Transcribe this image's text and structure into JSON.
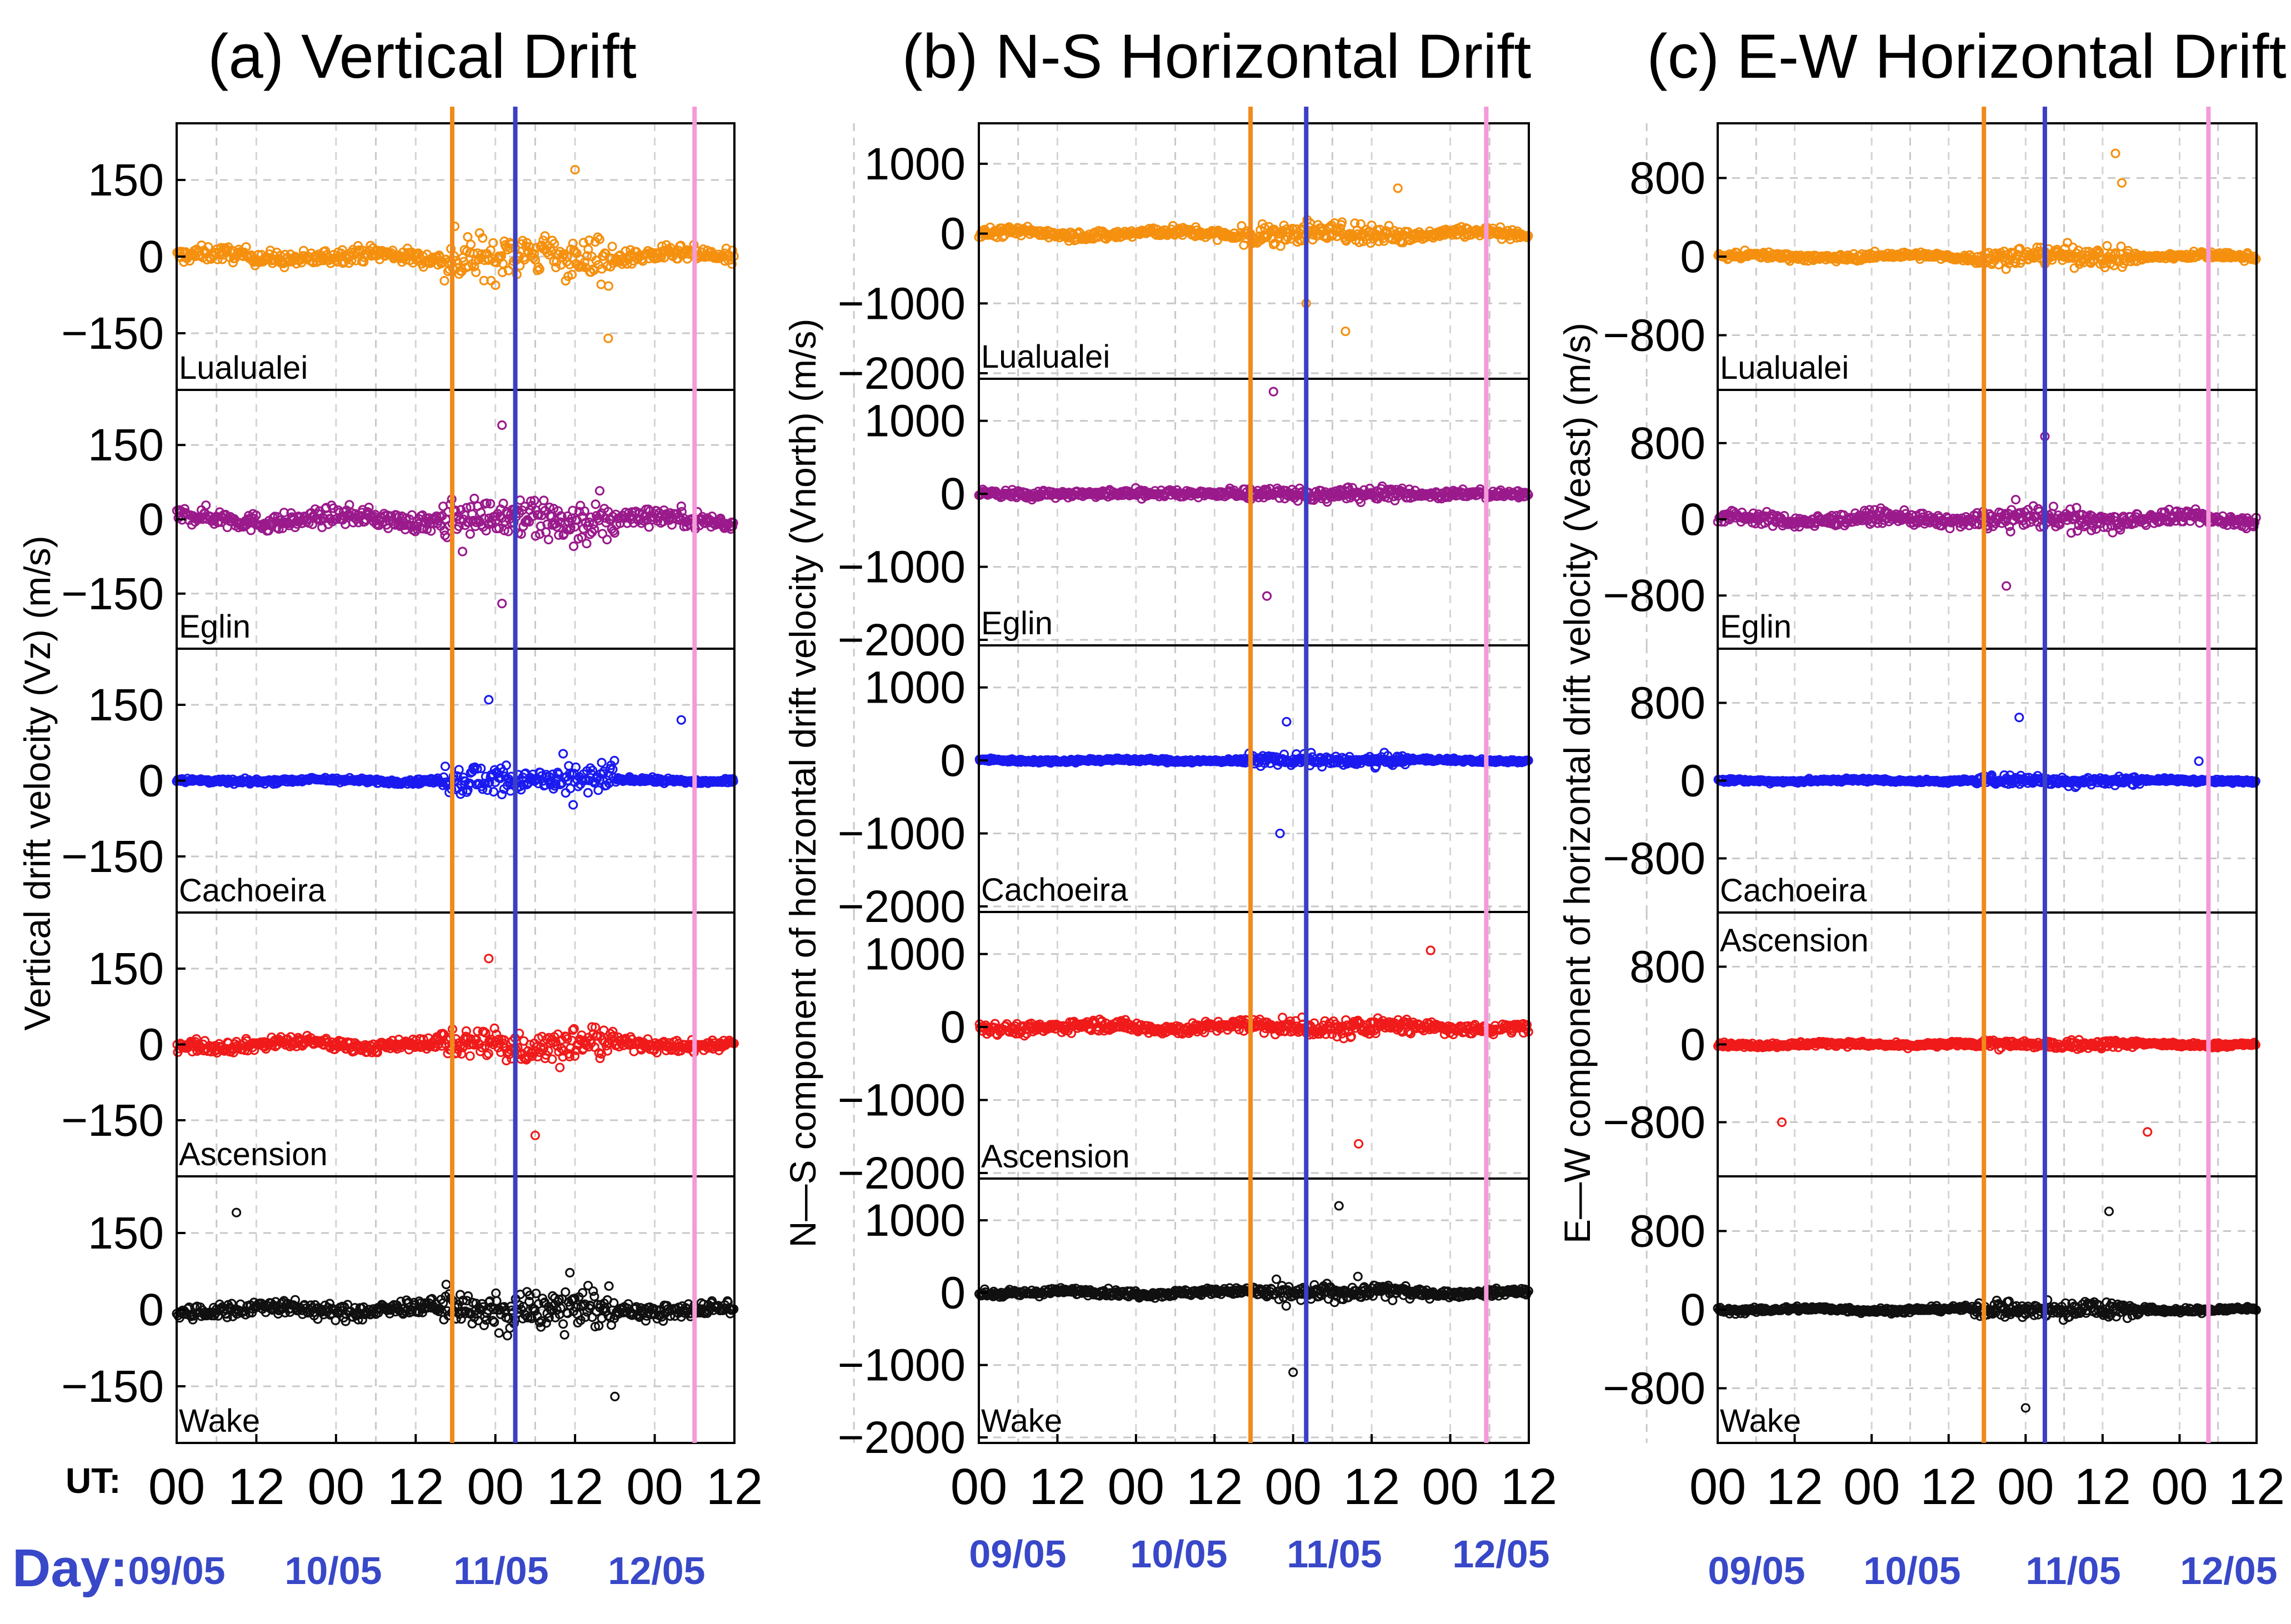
{
  "chart_data": {
    "type": "scatter",
    "panels": [
      {
        "title": "(a) Vertical Drift",
        "ylabel": "Vertical drift velocity (Vz)  (m/s)",
        "ylim": [
          -250,
          250
        ],
        "yticks": [
          150,
          0,
          -150
        ],
        "ytick_labels": [
          "150",
          "0",
          "−150"
        ],
        "xlim": [
          0,
          84
        ],
        "xticks": [
          0,
          12,
          24,
          36,
          48,
          60,
          72,
          84
        ],
        "xtick_labels": [
          "00",
          "12",
          "00",
          "12",
          "00",
          "12",
          "00",
          "12"
        ],
        "station_label_pos": "bottom-left",
        "event_lines": [
          {
            "x": 41.5,
            "color": "#f08a1c"
          },
          {
            "x": 51,
            "color": "#3b3fc4"
          },
          {
            "x": 78,
            "color": "#f49ad8"
          }
        ]
      },
      {
        "title": "(b) N-S Horizontal Drift",
        "ylabel": "N—S component of horizontal drift velocity (Vnorth)  (m/s)",
        "ylim": [
          -2000,
          1500
        ],
        "yticks": [
          1000,
          0,
          -1000,
          -2000
        ],
        "ytick_labels": [
          "1000",
          "0",
          "−1000",
          "−2000"
        ],
        "xlim": [
          0,
          84
        ],
        "xticks": [
          0,
          12,
          24,
          36,
          48,
          60,
          72,
          84
        ],
        "xtick_labels": [
          "00",
          "12",
          "00",
          "12",
          "00",
          "12",
          "00",
          "12"
        ],
        "station_label_pos": "bottom-left",
        "event_lines": [
          {
            "x": 41.5,
            "color": "#f08a1c"
          },
          {
            "x": 50,
            "color": "#3b3fc4"
          },
          {
            "x": 77.5,
            "color": "#f49ad8"
          }
        ]
      },
      {
        "title": "(c) E-W Horizontal Drift",
        "ylabel": "E—W component of horizontal drift velocity (Veast) (m/s)",
        "ylim": [
          -1300,
          1300
        ],
        "yticks": [
          800,
          0,
          -800
        ],
        "ytick_labels": [
          "800",
          "0",
          "−800"
        ],
        "xlim": [
          0,
          84
        ],
        "xticks": [
          0,
          12,
          24,
          36,
          48,
          60,
          72,
          84
        ],
        "xtick_labels": [
          "00",
          "12",
          "00",
          "12",
          "00",
          "12",
          "00",
          "12"
        ],
        "station_label_pos": "bottom-left",
        "event_lines": [
          {
            "x": 41.5,
            "color": "#f08a1c"
          },
          {
            "x": 51,
            "color": "#3b3fc4"
          },
          {
            "x": 76.5,
            "color": "#f49ad8"
          }
        ]
      }
    ],
    "series": [
      {
        "name": "Lualualei",
        "color": "#f5900f",
        "base_amplitude": [
          25,
          120,
          60
        ],
        "storm_amplitude": [
          90,
          320,
          220
        ],
        "outliers": [
          [
            [
              65,
              -160
            ],
            [
              60,
              170
            ]
          ],
          [
            [
              50,
              -1000
            ],
            [
              56,
              -1400
            ],
            [
              64,
              650
            ]
          ],
          [
            [
              62,
              1050
            ],
            [
              63,
              750
            ]
          ]
        ]
      },
      {
        "name": "Eglin",
        "color": "#9a1a8c",
        "base_amplitude": [
          30,
          120,
          110
        ],
        "storm_amplitude": [
          90,
          300,
          220
        ],
        "outliers": [
          [
            [
              49,
              190
            ],
            [
              49,
              -170
            ]
          ],
          [
            [
              45,
              1400
            ],
            [
              44,
              -1400
            ]
          ],
          [
            [
              45,
              -700
            ],
            [
              51,
              870
            ]
          ]
        ]
      },
      {
        "name": "Cachoeira",
        "color": "#1a1af0",
        "base_amplitude": [
          8,
          40,
          30
        ],
        "storm_amplitude": [
          70,
          150,
          110
        ],
        "outliers": [
          [
            [
              47,
              160
            ],
            [
              76,
              120
            ]
          ],
          [
            [
              47,
              530
            ],
            [
              46,
              -1000
            ]
          ],
          [
            [
              47,
              650
            ],
            [
              75,
              200
            ]
          ]
        ]
      },
      {
        "name": "Ascension",
        "color": "#f01a1a",
        "base_amplitude": [
          20,
          130,
          40
        ],
        "storm_amplitude": [
          80,
          250,
          100
        ],
        "outliers": [
          [
            [
              47,
              170
            ],
            [
              54,
              -180
            ]
          ],
          [
            [
              69,
              1050
            ],
            [
              58,
              -1600
            ]
          ],
          [
            [
              10,
              -800
            ],
            [
              67,
              -900
            ]
          ]
        ]
      },
      {
        "name": "Wake",
        "color": "#101010",
        "base_amplitude": [
          25,
          80,
          45
        ],
        "storm_amplitude": [
          80,
          250,
          200
        ],
        "outliers": [
          [
            [
              9,
              190
            ],
            [
              66,
              -170
            ]
          ],
          [
            [
              55,
              1200
            ],
            [
              48,
              -1100
            ]
          ],
          [
            [
              61,
              1000
            ],
            [
              48,
              -1000
            ]
          ]
        ]
      }
    ],
    "days": [
      "09/05",
      "10/05",
      "11/05",
      "12/05"
    ],
    "x_axis_prefix": "UT:",
    "day_prefix": "Day:"
  },
  "colors": {
    "day_label": "#3848c8"
  }
}
